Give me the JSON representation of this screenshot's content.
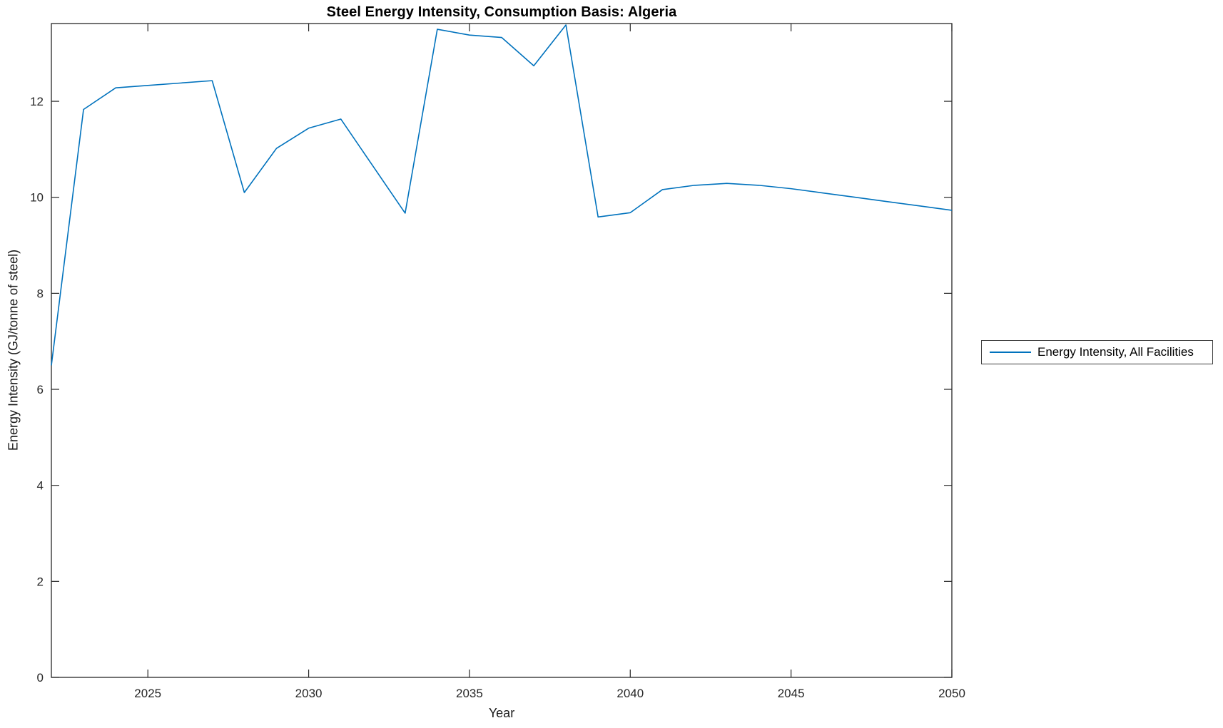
{
  "figure": {
    "background": "#ffffff",
    "axis_color": "#262626",
    "tick_label_color": "#262626"
  },
  "chart_data": {
    "type": "line",
    "title": "Steel Energy Intensity, Consumption Basis: Algeria",
    "xlabel": "Year",
    "ylabel": "Energy Intensity (GJ/tonne of steel)",
    "x": [
      2022,
      2023,
      2024,
      2025,
      2026,
      2027,
      2028,
      2029,
      2030,
      2031,
      2032,
      2033,
      2034,
      2035,
      2036,
      2037,
      2038,
      2039,
      2040,
      2041,
      2042,
      2043,
      2044,
      2045,
      2046,
      2047,
      2048,
      2049,
      2050
    ],
    "series": [
      {
        "name": "Energy Intensity, All Facilities",
        "color": "#0072BD",
        "values": [
          6.5,
          11.83,
          12.28,
          12.33,
          12.38,
          12.43,
          10.1,
          11.02,
          11.44,
          11.63,
          10.65,
          9.67,
          13.5,
          13.38,
          13.33,
          12.74,
          13.59,
          9.59,
          9.68,
          10.16,
          10.25,
          10.29,
          10.25,
          10.18,
          10.09,
          10.0,
          9.91,
          9.82,
          9.73
        ]
      }
    ],
    "xlim": [
      2022,
      2050
    ],
    "ylim": [
      0,
      13.62
    ],
    "xticks": [
      2025,
      2030,
      2035,
      2040,
      2045,
      2050
    ],
    "yticks": [
      0,
      2,
      4,
      6,
      8,
      10,
      12
    ],
    "grid": false,
    "legend_position": "right-outside",
    "legend_entries": [
      "Energy Intensity, All Facilities"
    ]
  }
}
